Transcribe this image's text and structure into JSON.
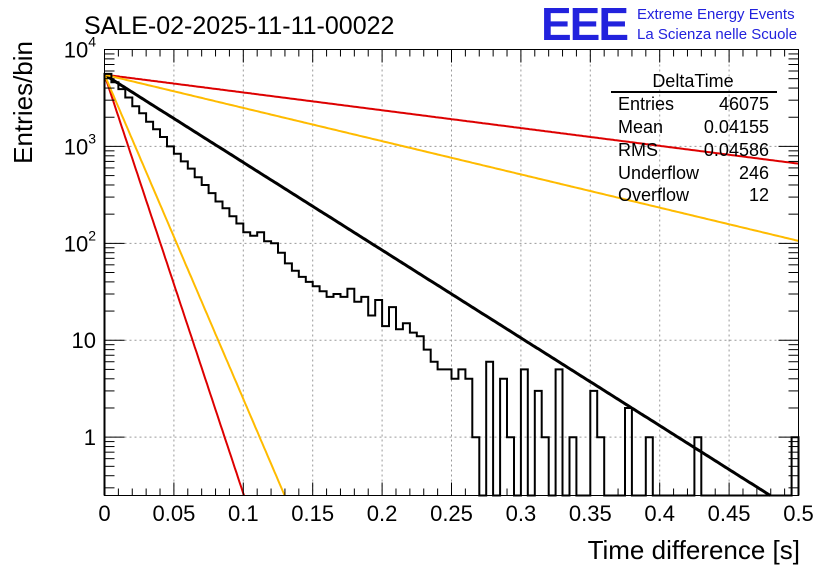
{
  "chart_data": {
    "type": "histogram",
    "title": "SALE-02-2025-11-11-00022",
    "xlabel": "Time difference [s]",
    "ylabel": "Entries/bin",
    "xlim": [
      0,
      0.5
    ],
    "ylim": [
      0.25,
      10000
    ],
    "yscale": "log",
    "grid": true,
    "x_ticks": [
      {
        "value": 0,
        "label": "0"
      },
      {
        "value": 0.05,
        "label": "0.05"
      },
      {
        "value": 0.1,
        "label": "0.1"
      },
      {
        "value": 0.15,
        "label": "0.15"
      },
      {
        "value": 0.2,
        "label": "0.2"
      },
      {
        "value": 0.25,
        "label": "0.25"
      },
      {
        "value": 0.3,
        "label": "0.3"
      },
      {
        "value": 0.35,
        "label": "0.35"
      },
      {
        "value": 0.4,
        "label": "0.4"
      },
      {
        "value": 0.45,
        "label": "0.45"
      },
      {
        "value": 0.5,
        "label": "0.5"
      }
    ],
    "y_ticks": [
      {
        "value": 1,
        "label": "1"
      },
      {
        "value": 10,
        "label": "10"
      },
      {
        "value": 100,
        "label": "10",
        "exp": "2"
      },
      {
        "value": 1000,
        "label": "10",
        "exp": "3"
      },
      {
        "value": 10000,
        "label": "10",
        "exp": "4"
      }
    ],
    "histogram": {
      "name": "DeltaTime",
      "color": "#000000",
      "bin_width": 0.005,
      "counts": [
        5600,
        4600,
        3900,
        3200,
        2600,
        2200,
        1800,
        1500,
        1250,
        1000,
        840,
        700,
        590,
        480,
        400,
        330,
        270,
        230,
        190,
        160,
        130,
        120,
        130,
        105,
        100,
        80,
        62,
        52,
        45,
        40,
        36,
        32,
        28,
        30,
        28,
        34,
        25,
        28,
        18,
        26,
        14,
        22,
        13,
        15,
        12,
        11,
        8,
        6,
        5,
        5,
        4,
        5,
        4,
        1,
        0.1,
        6,
        0.1,
        4,
        1,
        0.1,
        5,
        0.1,
        3,
        1,
        0.1,
        5,
        0.1,
        1,
        0.1,
        0.1,
        3,
        1,
        0.1,
        0.1,
        0.1,
        2,
        0.1,
        0.1,
        1,
        0.1,
        0.1,
        0.1,
        0.1,
        0.1,
        0.1,
        1,
        0.1,
        0.1,
        0.1,
        0.1,
        0.1,
        0.1,
        0.1,
        0.1,
        0.1,
        0.1,
        0.1,
        0.1,
        0.1,
        1
      ]
    },
    "fits": [
      {
        "name": "fit",
        "color": "#000000",
        "A": 5500,
        "tau": 0.04797
      },
      {
        "name": "red-slow",
        "color": "#dd0000",
        "A": 5500,
        "tau": 0.2365
      },
      {
        "name": "orange-slow",
        "color": "#ffbb00",
        "A": 5500,
        "tau": 0.1266
      },
      {
        "name": "red-fast",
        "color": "#dd0000",
        "A": 5500,
        "tau": 0.01005
      },
      {
        "name": "orange-fast",
        "color": "#ffbb00",
        "A": 5500,
        "tau": 0.01298
      }
    ]
  },
  "stats_box": {
    "title": "DeltaTime",
    "rows": [
      {
        "label": "Entries",
        "value": "46075"
      },
      {
        "label": "Mean",
        "value": "0.04155"
      },
      {
        "label": "RMS",
        "value": "0.04586"
      },
      {
        "label": "Underflow",
        "value": "246"
      },
      {
        "label": "Overflow",
        "value": "12"
      }
    ]
  },
  "logo": {
    "text": "EEE",
    "line1": "Extreme Energy Events",
    "line2": "La Scienza nelle Scuole",
    "color": "#2222dd"
  }
}
